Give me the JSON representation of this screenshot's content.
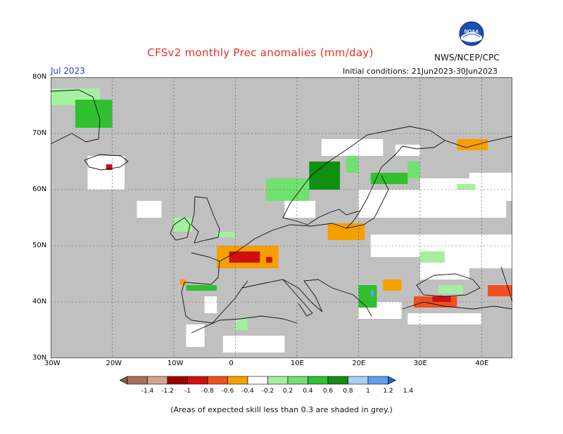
{
  "title": "CFSv2 monthly Prec anomalies (mm/day)",
  "month": "Jul 2023",
  "initial_conditions": "Initial conditions: 21Jun2023-30Jun2023",
  "agency": "NWS/NCEP/CPC",
  "logo_text": "NOAA",
  "footnote": "(Areas of expected skill less than 0.3 are shaded in grey.)",
  "axes": {
    "lon_labels": [
      "30W",
      "20W",
      "10W",
      "0",
      "10E",
      "20E",
      "30E",
      "40E"
    ],
    "lon_values": [
      -30,
      -20,
      -10,
      0,
      10,
      20,
      30,
      40
    ],
    "lat_labels": [
      "30N",
      "40N",
      "50N",
      "60N",
      "70N",
      "80N"
    ],
    "lat_values": [
      30,
      40,
      50,
      60,
      70,
      80
    ],
    "lon_range": [
      -30,
      45
    ],
    "lat_range": [
      30,
      80
    ]
  },
  "colorbar": {
    "tick_labels": [
      "-1.4",
      "-1.2",
      "-1",
      "-0.8",
      "-0.6",
      "-0.4",
      "-0.2",
      "0.2",
      "0.4",
      "0.6",
      "0.8",
      "1",
      "1.2",
      "1.4"
    ],
    "colors": [
      "#8a5a46",
      "#a87060",
      "#d4a48e",
      "#a00000",
      "#d01010",
      "#f05020",
      "#f5a000",
      "#ffffff",
      "#a5f0a0",
      "#70e070",
      "#30c030",
      "#109010",
      "#a8d0f8",
      "#60a0f0",
      "#2060d0"
    ]
  },
  "chart_data": {
    "type": "heatmap",
    "title": "CFSv2 monthly Prec anomalies (mm/day)",
    "region": "Europe",
    "lon_range": [
      -30,
      45
    ],
    "lat_range": [
      30,
      80
    ],
    "grey_means": "expected skill less than 0.3",
    "anomaly_regions": [
      {
        "lon": [
          -30,
          -22
        ],
        "lat": [
          75,
          78
        ],
        "value": 0.3
      },
      {
        "lon": [
          -26,
          -20
        ],
        "lat": [
          71,
          76
        ],
        "value": 0.6
      },
      {
        "lon": [
          -21,
          -20
        ],
        "lat": [
          63.5,
          64.5
        ],
        "value": -0.7
      },
      {
        "lon": [
          -10,
          -7
        ],
        "lat": [
          52.5,
          55
        ],
        "value": 0.3
      },
      {
        "lon": [
          -3,
          0
        ],
        "lat": [
          51.5,
          52.5
        ],
        "value": 0.3
      },
      {
        "lon": [
          5,
          12
        ],
        "lat": [
          58,
          62
        ],
        "value": 0.4
      },
      {
        "lon": [
          12,
          17
        ],
        "lat": [
          60,
          65
        ],
        "value": 0.8
      },
      {
        "lon": [
          18,
          20
        ],
        "lat": [
          63,
          66
        ],
        "value": 0.4
      },
      {
        "lon": [
          22,
          28
        ],
        "lat": [
          61,
          63
        ],
        "value": 0.6
      },
      {
        "lon": [
          28,
          30
        ],
        "lat": [
          62,
          65
        ],
        "value": 0.4
      },
      {
        "lon": [
          36,
          41
        ],
        "lat": [
          67,
          69
        ],
        "value": -0.3
      },
      {
        "lon": [
          36,
          39
        ],
        "lat": [
          60,
          61
        ],
        "value": 0.3
      },
      {
        "lon": [
          15,
          21
        ],
        "lat": [
          51,
          54
        ],
        "value": -0.3
      },
      {
        "lon": [
          -3,
          7
        ],
        "lat": [
          46,
          50
        ],
        "value": -0.4
      },
      {
        "lon": [
          -1,
          4
        ],
        "lat": [
          47,
          49
        ],
        "value": -0.7
      },
      {
        "lon": [
          5,
          6
        ],
        "lat": [
          47,
          48
        ],
        "value": -0.8
      },
      {
        "lon": [
          -8,
          -3
        ],
        "lat": [
          42,
          43
        ],
        "value": 0.6
      },
      {
        "lon": [
          -9,
          -8
        ],
        "lat": [
          43,
          44
        ],
        "value": -0.3
      },
      {
        "lon": [
          0,
          2
        ],
        "lat": [
          35,
          37
        ],
        "value": 0.3
      },
      {
        "lon": [
          20,
          23
        ],
        "lat": [
          39,
          43
        ],
        "value": 0.6
      },
      {
        "lon": [
          22,
          22.5
        ],
        "lat": [
          41,
          42
        ],
        "value": 1.2
      },
      {
        "lon": [
          24,
          27
        ],
        "lat": [
          42,
          44
        ],
        "value": -0.3
      },
      {
        "lon": [
          29,
          36
        ],
        "lat": [
          39,
          41
        ],
        "value": -0.6
      },
      {
        "lon": [
          32,
          35
        ],
        "lat": [
          40,
          41
        ],
        "value": -0.8
      },
      {
        "lon": [
          33,
          37
        ],
        "lat": [
          41.5,
          43
        ],
        "value": 0.3
      },
      {
        "lon": [
          41,
          45
        ],
        "lat": [
          41,
          43
        ],
        "value": -0.6
      },
      {
        "lon": [
          30,
          34
        ],
        "lat": [
          47,
          49
        ],
        "value": 0.3
      }
    ]
  }
}
